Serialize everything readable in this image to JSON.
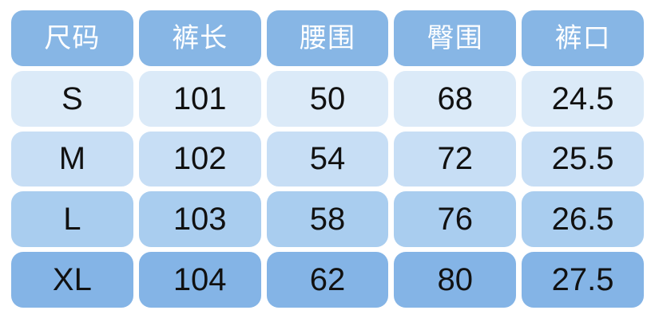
{
  "page": {
    "background": "#ffffff"
  },
  "colors": {
    "header_bg": "#87b6e5",
    "header_text": "#ffffff",
    "body_text": "#111111",
    "row_bgs": [
      "#dbeaf8",
      "#c7def5",
      "#a9cdef",
      "#84b4e6"
    ]
  },
  "chart_data": {
    "type": "table",
    "columns": [
      "尺码",
      "裤长",
      "腰围",
      "臀围",
      "裤口"
    ],
    "rows": [
      [
        "S",
        "101",
        "50",
        "68",
        "24.5"
      ],
      [
        "M",
        "102",
        "54",
        "72",
        "25.5"
      ],
      [
        "L",
        "103",
        "58",
        "76",
        "26.5"
      ],
      [
        "XL",
        "104",
        "62",
        "80",
        "27.5"
      ]
    ]
  }
}
